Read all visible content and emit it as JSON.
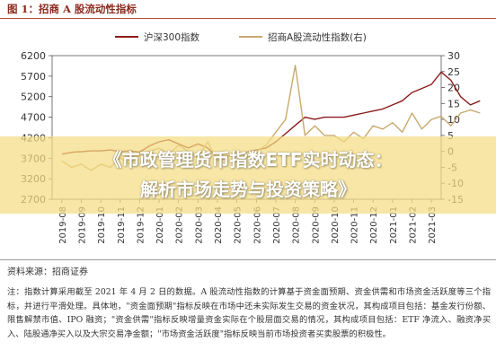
{
  "figure": {
    "title": "图 1：招商 A 股流动性指标"
  },
  "chart_data": {
    "type": "line",
    "x_ticks": [
      "2019-08",
      "2019-09",
      "2019-10",
      "2019-11",
      "2019-12",
      "2020-01",
      "2020-02",
      "2020-03",
      "2020-04",
      "2020-05",
      "2020-06",
      "2020-07",
      "2020-08",
      "2020-09",
      "2020-10",
      "2020-11",
      "2020-12",
      "2021-01",
      "2021-02",
      "2021-03"
    ],
    "y_left": {
      "min": 2700,
      "max": 6200,
      "ticks": [
        "6200",
        "5700",
        "5200",
        "4700",
        "4200",
        "3700",
        "3200",
        "2700"
      ]
    },
    "y_right": {
      "min": -15,
      "max": 30,
      "ticks": [
        "30",
        "25",
        "20",
        "15",
        "10",
        "5",
        "0",
        "-5",
        "-10",
        "-15"
      ]
    },
    "series": [
      {
        "name": "沪深300指数",
        "axis": "left",
        "color": "#8b1a1a",
        "points": [
          [
            0,
            3800
          ],
          [
            0.6,
            3850
          ],
          [
            1,
            3860
          ],
          [
            1.5,
            3880
          ],
          [
            2,
            3880
          ],
          [
            2.5,
            3900
          ],
          [
            3,
            3860
          ],
          [
            3.5,
            3880
          ],
          [
            4,
            3850
          ],
          [
            4.5,
            4000
          ],
          [
            5,
            4100
          ],
          [
            5.5,
            4150
          ],
          [
            6,
            4050
          ],
          [
            6.5,
            3950
          ],
          [
            7,
            4050
          ],
          [
            7.5,
            3950
          ],
          [
            8,
            3700
          ],
          [
            8.5,
            3750
          ],
          [
            9,
            3780
          ],
          [
            9.5,
            3850
          ],
          [
            10,
            3900
          ],
          [
            10.5,
            3950
          ],
          [
            11,
            4100
          ],
          [
            11.5,
            4300
          ],
          [
            12,
            4500
          ],
          [
            12.5,
            4700
          ],
          [
            13,
            4650
          ],
          [
            13.5,
            4700
          ],
          [
            14,
            4700
          ],
          [
            14.5,
            4700
          ],
          [
            15,
            4750
          ],
          [
            15.5,
            4800
          ],
          [
            16,
            4850
          ],
          [
            16.5,
            4900
          ],
          [
            17,
            5000
          ],
          [
            17.5,
            5100
          ],
          [
            18,
            5300
          ],
          [
            18.5,
            5400
          ],
          [
            19,
            5500
          ],
          [
            19.5,
            5800
          ],
          [
            20,
            5600
          ],
          [
            20.5,
            5200
          ],
          [
            21,
            5000
          ],
          [
            21.5,
            5100
          ]
        ]
      },
      {
        "name": "招商A股流动性指数(右)",
        "axis": "right",
        "color": "#c9a96e",
        "points": [
          [
            0,
            -3
          ],
          [
            0.5,
            -5
          ],
          [
            1,
            -4
          ],
          [
            1.5,
            -6
          ],
          [
            2,
            -4
          ],
          [
            2.5,
            -5
          ],
          [
            3,
            -2
          ],
          [
            3.5,
            -4
          ],
          [
            4,
            -1
          ],
          [
            4.5,
            0
          ],
          [
            5,
            1
          ],
          [
            5.5,
            -1
          ],
          [
            6,
            2
          ],
          [
            6.5,
            0
          ],
          [
            7,
            -2
          ],
          [
            7.5,
            3
          ],
          [
            8,
            -3
          ],
          [
            8.5,
            -2
          ],
          [
            9,
            0
          ],
          [
            9.5,
            -2
          ],
          [
            10,
            0
          ],
          [
            10.5,
            2
          ],
          [
            11,
            6
          ],
          [
            11.5,
            10
          ],
          [
            12,
            27
          ],
          [
            12.5,
            5
          ],
          [
            13,
            8
          ],
          [
            13.5,
            5
          ],
          [
            14,
            5
          ],
          [
            14.5,
            3
          ],
          [
            15,
            6
          ],
          [
            15.5,
            4
          ],
          [
            16,
            8
          ],
          [
            16.5,
            7
          ],
          [
            17,
            9
          ],
          [
            17.5,
            6
          ],
          [
            18,
            12
          ],
          [
            18.5,
            7
          ],
          [
            19,
            10
          ],
          [
            19.5,
            11
          ],
          [
            20,
            8
          ],
          [
            20.5,
            12
          ],
          [
            21,
            13
          ],
          [
            21.5,
            12
          ]
        ]
      }
    ]
  },
  "source": "资料来源：招商证券",
  "note": "注：指数计算采用截至 2021 年 4 月 2 日的数据。A 股流动性指数的计算基于资金面预期、资金供需和市场资金活跃度等三个指标，并进行平滑处理。具体地，\"资金面预期\"指标反映在市场中还未实际发生交易的资金状况，其构成项目包括：基金发行份额、限售解禁市值、IPO 融资；\"资金供需\"指标反映增量资金实际在个股层面交易的情况，其构成项目包括：ETF 净流入、融资净买入、陆股通净买入以及大宗交易净金额；\"市场资金活跃度\"指标反映当前市场投资者买卖股票的积极性。",
  "banner": {
    "line1": "《市政管理货币指数ETF实时动态：",
    "line2": "解析市场走势与投资策略》"
  }
}
